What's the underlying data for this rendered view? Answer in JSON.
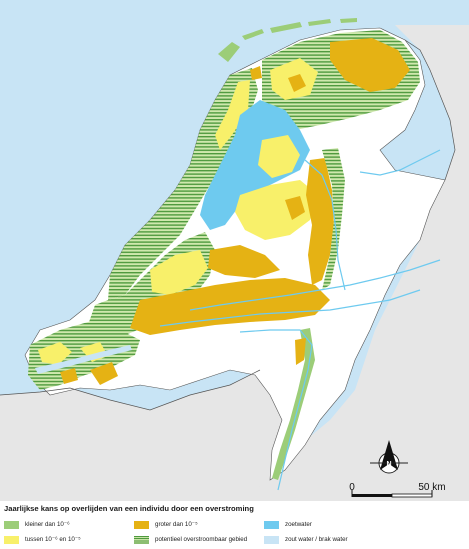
{
  "colors": {
    "sea": "#c8e4f5",
    "land_outside": "#e6e6e6",
    "klein": "#9ccd78",
    "tussen": "#f8f06a",
    "groot": "#e5b214",
    "hatch_dark": "#4f9a3e",
    "hatch_light": "#cfe8ad",
    "zoetwater": "#6ecaef",
    "zout_water": "#c8e4f5",
    "land_safe": "#ffffff",
    "border": "#555555"
  },
  "north_arrow": {
    "label": "N",
    "icon": "north-arrow-icon"
  },
  "scale_bar": {
    "label_start": "0",
    "label_end": "50 km"
  },
  "legend": {
    "title": "Jaarlijkse kans op overlijden van een individu door een overstroming",
    "items": [
      {
        "label": "kleiner dan 10⁻⁶",
        "color": "#9ccd78",
        "pattern": "solid"
      },
      {
        "label": "groter dan 10⁻⁵",
        "color": "#e5b214",
        "pattern": "solid"
      },
      {
        "label": "zoetwater",
        "color": "#6ecaef",
        "pattern": "solid"
      },
      {
        "label": "tussen 10⁻⁶ en 10⁻⁵",
        "color": "#f8f06a",
        "pattern": "solid"
      },
      {
        "label": "potentieel overstroombaar gebied",
        "color": "#4f9a3e",
        "pattern": "hatch"
      },
      {
        "label": "zout water / brak water",
        "color": "#c8e4f5",
        "pattern": "solid"
      }
    ]
  }
}
